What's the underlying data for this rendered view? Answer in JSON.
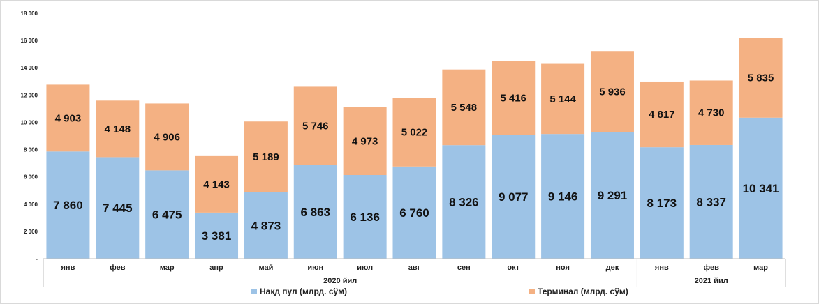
{
  "chart_data": {
    "type": "bar",
    "stacked": true,
    "title": "",
    "xlabel": "",
    "ylabel": "",
    "ylim": [
      0,
      18000
    ],
    "yticks": [
      0,
      2000,
      4000,
      6000,
      8000,
      10000,
      12000,
      14000,
      16000,
      18000
    ],
    "ytick_labels": [
      "-",
      "2 000",
      "4 000",
      "6 000",
      "8 000",
      "10 000",
      "12 000",
      "14 000",
      "16 000",
      "18 000"
    ],
    "categories": [
      "янв",
      "фев",
      "мар",
      "апр",
      "май",
      "июн",
      "июл",
      "авг",
      "сен",
      "окт",
      "ноя",
      "дек",
      "янв",
      "фев",
      "мар"
    ],
    "groups": [
      {
        "label": "2020 йил",
        "start": 0,
        "end": 11
      },
      {
        "label": "2021 йил",
        "start": 12,
        "end": 14
      }
    ],
    "series": [
      {
        "name": "Нақд пул (млрд. сўм)",
        "color": "#9DC3E6",
        "values": [
          7860,
          7445,
          6475,
          3381,
          4873,
          6863,
          6136,
          6760,
          8326,
          9077,
          9146,
          9291,
          8173,
          8337,
          10341
        ],
        "labels": [
          "7 860",
          "7 445",
          "6 475",
          "3 381",
          "4 873",
          "6 863",
          "6 136",
          "6 760",
          "8 326",
          "9 077",
          "9 146",
          "9 291",
          "8 173",
          "8 337",
          "10 341"
        ]
      },
      {
        "name": "Терминал (млрд. сўм)",
        "color": "#F4B183",
        "values": [
          4903,
          4148,
          4906,
          4143,
          5189,
          5746,
          4973,
          5022,
          5548,
          5416,
          5144,
          5936,
          4817,
          4730,
          5835
        ],
        "labels": [
          "4 903",
          "4 148",
          "4 906",
          "4 143",
          "5 189",
          "5 746",
          "4 973",
          "5 022",
          "5 548",
          "5 416",
          "5 144",
          "5 936",
          "4 817",
          "4 730",
          "5 835"
        ]
      }
    ],
    "grid": false,
    "legend": "bottom"
  }
}
